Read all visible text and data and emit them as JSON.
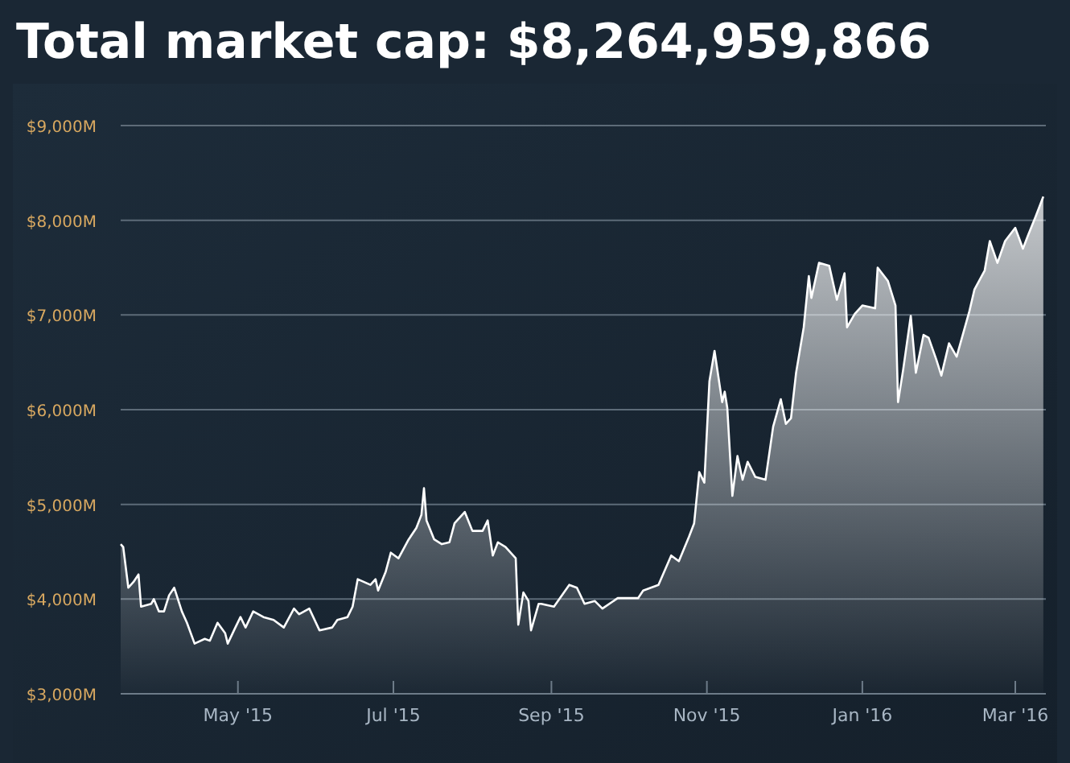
{
  "chart_data": {
    "type": "area",
    "title": "Total market cap: $8,264,959,866",
    "x": [
      "2015-03-16",
      "2015-03-17",
      "2015-03-19",
      "2015-03-21",
      "2015-03-23",
      "2015-03-24",
      "2015-03-28",
      "2015-03-29",
      "2015-03-31",
      "2015-04-02",
      "2015-04-04",
      "2015-04-06",
      "2015-04-09",
      "2015-04-11",
      "2015-04-14",
      "2015-04-18",
      "2015-04-20",
      "2015-04-23",
      "2015-04-26",
      "2015-04-27",
      "2015-04-30",
      "2015-05-02",
      "2015-05-04",
      "2015-05-07",
      "2015-05-09",
      "2015-05-11",
      "2015-05-15",
      "2015-05-19",
      "2015-05-23",
      "2015-05-25",
      "2015-05-29",
      "2015-06-02",
      "2015-06-07",
      "2015-06-09",
      "2015-06-13",
      "2015-06-15",
      "2015-06-17",
      "2015-06-22",
      "2015-06-24",
      "2015-06-25",
      "2015-06-28",
      "2015-06-30",
      "2015-07-03",
      "2015-07-07",
      "2015-07-10",
      "2015-07-12",
      "2015-07-13",
      "2015-07-14",
      "2015-07-17",
      "2015-07-20",
      "2015-07-23",
      "2015-07-25",
      "2015-07-29",
      "2015-08-01",
      "2015-08-05",
      "2015-08-07",
      "2015-08-09",
      "2015-08-11",
      "2015-08-14",
      "2015-08-18",
      "2015-08-19",
      "2015-08-21",
      "2015-08-23",
      "2015-08-24",
      "2015-08-27",
      "2015-08-28",
      "2015-09-02",
      "2015-09-08",
      "2015-09-11",
      "2015-09-14",
      "2015-09-18",
      "2015-09-21",
      "2015-09-27",
      "2015-10-05",
      "2015-10-07",
      "2015-10-13",
      "2015-10-18",
      "2015-10-21",
      "2015-10-25",
      "2015-10-27",
      "2015-10-29",
      "2015-10-31",
      "2015-11-02",
      "2015-11-04",
      "2015-11-07",
      "2015-11-08",
      "2015-11-09",
      "2015-11-11",
      "2015-11-13",
      "2015-11-15",
      "2015-11-17",
      "2015-11-20",
      "2015-11-24",
      "2015-11-27",
      "2015-11-30",
      "2015-12-02",
      "2015-12-04",
      "2015-12-06",
      "2015-12-09",
      "2015-12-11",
      "2015-12-12",
      "2015-12-15",
      "2015-12-19",
      "2015-12-22",
      "2015-12-25",
      "2015-12-26",
      "2015-12-29",
      "2016-01-01",
      "2016-01-06",
      "2016-01-07",
      "2016-01-11",
      "2016-01-14",
      "2016-01-15",
      "2016-01-17",
      "2016-01-20",
      "2016-01-22",
      "2016-01-25",
      "2016-01-27",
      "2016-01-30",
      "2016-02-01",
      "2016-02-04",
      "2016-02-07",
      "2016-02-12",
      "2016-02-14",
      "2016-02-18",
      "2016-02-20",
      "2016-02-23",
      "2016-02-26",
      "2016-03-01",
      "2016-03-04",
      "2016-03-06",
      "2016-03-09",
      "2016-03-12"
    ],
    "series": [
      {
        "color": "#ffffff",
        "values": [
          4580,
          4550,
          4120,
          4180,
          4260,
          3920,
          3950,
          4000,
          3870,
          3870,
          4040,
          4120,
          3870,
          3750,
          3530,
          3580,
          3560,
          3750,
          3640,
          3530,
          3700,
          3810,
          3700,
          3870,
          3840,
          3810,
          3780,
          3700,
          3900,
          3840,
          3900,
          3670,
          3700,
          3780,
          3810,
          3920,
          4210,
          4150,
          4210,
          4090,
          4290,
          4490,
          4430,
          4630,
          4750,
          4890,
          5170,
          4830,
          4630,
          4580,
          4600,
          4800,
          4920,
          4720,
          4720,
          4830,
          4460,
          4600,
          4550,
          4430,
          3730,
          4070,
          3980,
          3670,
          3950,
          3950,
          3920,
          4150,
          4120,
          3950,
          3980,
          3900,
          4010,
          4010,
          4090,
          4150,
          4460,
          4400,
          4660,
          4800,
          5340,
          5230,
          6300,
          6620,
          6080,
          6190,
          6020,
          5090,
          5510,
          5260,
          5450,
          5290,
          5260,
          5820,
          6110,
          5850,
          5910,
          6390,
          6870,
          7410,
          7180,
          7550,
          7520,
          7160,
          7440,
          6870,
          7010,
          7100,
          7070,
          7500,
          7360,
          7100,
          6080,
          6420,
          6990,
          6390,
          6790,
          6760,
          6530,
          6360,
          6700,
          6560,
          7040,
          7270,
          7470,
          7780,
          7550,
          7780,
          7920,
          7700,
          7840,
          8040,
          8250
        ]
      }
    ],
    "xlim": [
      "2015-03-16",
      "2016-03-13"
    ],
    "xticks": [
      {
        "value": "2015-05-01",
        "label": "May '15"
      },
      {
        "value": "2015-07-01",
        "label": "Jul '15"
      },
      {
        "value": "2015-09-01",
        "label": "Sep '15"
      },
      {
        "value": "2015-11-01",
        "label": "Nov '15"
      },
      {
        "value": "2016-01-01",
        "label": "Jan '16"
      },
      {
        "value": "2016-03-01",
        "label": "Mar '16"
      }
    ],
    "ylim": [
      3000,
      9000
    ],
    "yticks": [
      {
        "value": 3000,
        "label": "$3,000M"
      },
      {
        "value": 4000,
        "label": "$4,000M"
      },
      {
        "value": 5000,
        "label": "$5,000M"
      },
      {
        "value": 6000,
        "label": "$6,000M"
      },
      {
        "value": 7000,
        "label": "$7,000M"
      },
      {
        "value": 8000,
        "label": "$8,000M"
      },
      {
        "value": 9000,
        "label": "$9,000M"
      }
    ],
    "grid": "y"
  }
}
